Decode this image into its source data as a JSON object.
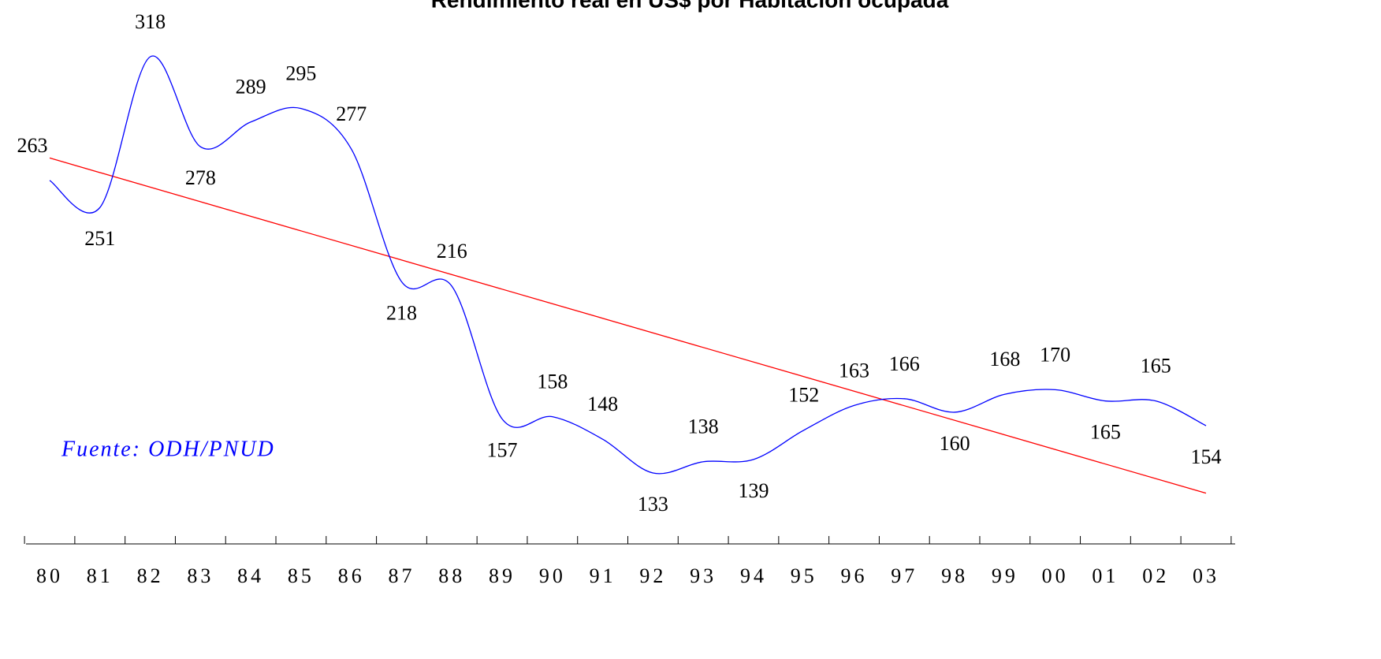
{
  "chart_data": {
    "type": "line",
    "title": "Rendimiento real en US$ por Habitación ocupada",
    "annotation": "Fuente: ODH/PNUD",
    "categories": [
      "80",
      "81",
      "82",
      "83",
      "84",
      "85",
      "86",
      "87",
      "88",
      "89",
      "90",
      "91",
      "92",
      "93",
      "94",
      "95",
      "96",
      "97",
      "98",
      "99",
      "00",
      "01",
      "02",
      "03"
    ],
    "series": [
      {
        "color": "#0000ff",
        "values": [
          263,
          251,
          318,
          278,
          289,
          295,
          277,
          218,
          216,
          157,
          158,
          148,
          133,
          138,
          139,
          152,
          163,
          166,
          160,
          168,
          170,
          165,
          165,
          154
        ]
      }
    ],
    "trendline": {
      "color": "#ff0000",
      "values": [
        273,
        124
      ]
    }
  }
}
